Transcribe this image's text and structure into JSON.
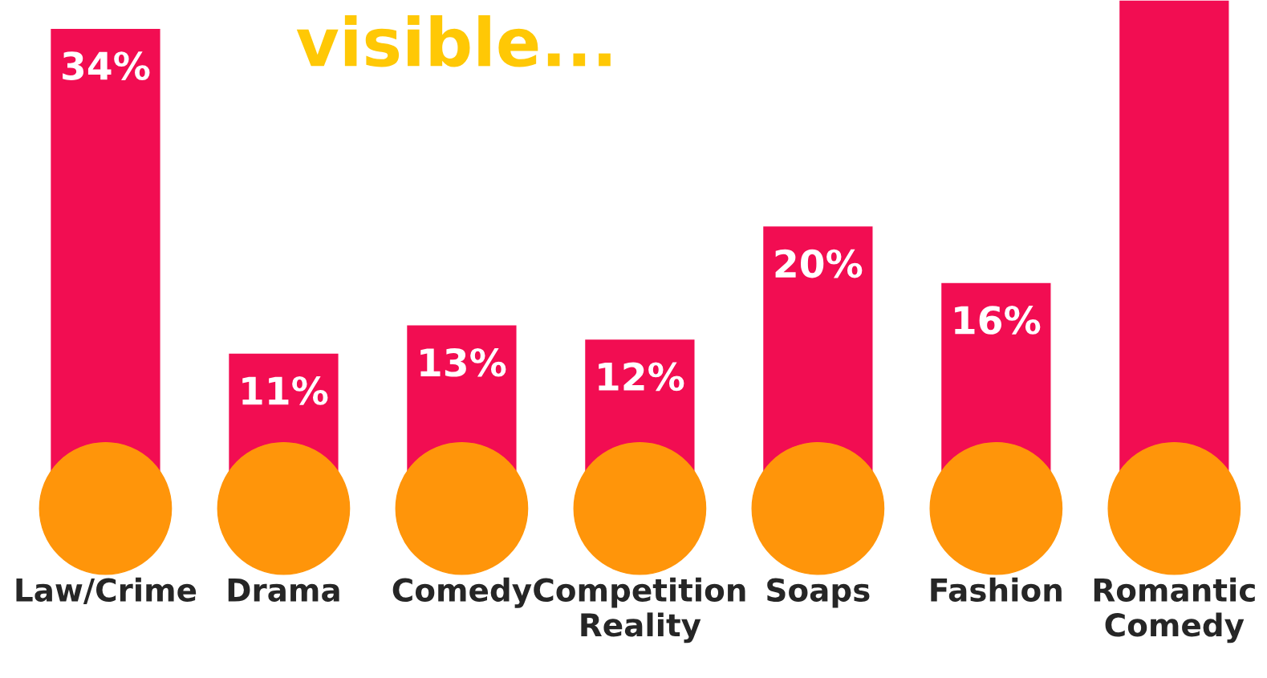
{
  "chart_data": {
    "type": "bar",
    "title": "visible...",
    "categories": [
      "Law/Crime",
      "Drama",
      "Comedy",
      "Competition\nReality",
      "Soaps",
      "Fashion",
      "Romantic\nComedy"
    ],
    "values": [
      34,
      11,
      13,
      12,
      20,
      16,
      36
    ],
    "value_labels": [
      "34%",
      "11%",
      "13%",
      "12%",
      "20%",
      "16%",
      null
    ],
    "color": "#f20d52",
    "grid": false
  }
}
